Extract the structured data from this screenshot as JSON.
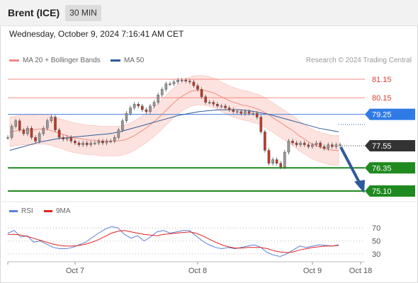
{
  "header": {
    "instrument": "Brent (ICE)",
    "timeframe": "30 MIN"
  },
  "datetime": "Wednesday, October 9, 2024 7:16:41 AM CET",
  "legend": {
    "ma20_label": "MA 20 + Bollinger Bands",
    "ma20_color": "#f28b82",
    "ma50_label": "MA 50",
    "ma50_color": "#2e5a9c"
  },
  "credit": "Research © 2024 Trading Central",
  "rsi_legend": {
    "rsi_label": "RSI",
    "rsi_color": "#5b7fd6",
    "ma_label": "9MA",
    "ma_color": "#e02020"
  },
  "chart_data": [
    {
      "type": "line",
      "title": "Brent (ICE) 30 MIN",
      "x_ticks": [
        "Oct 7",
        "Oct 8",
        "Oct 9",
        "Oct 18"
      ],
      "ylim": [
        74.6,
        81.8
      ],
      "levels": [
        {
          "label": "81.15",
          "value": 81.15,
          "kind": "resistance"
        },
        {
          "label": "80.15",
          "value": 80.15,
          "kind": "resistance"
        },
        {
          "label": "79.25",
          "value": 79.25,
          "kind": "pivot"
        },
        {
          "label": "77.55",
          "value": 77.55,
          "kind": "last"
        },
        {
          "label": "76.35",
          "value": 76.35,
          "kind": "support"
        },
        {
          "label": "75.10",
          "value": 75.1,
          "kind": "support"
        }
      ],
      "series": [
        {
          "name": "Price",
          "values": [
            78.0,
            78.6,
            78.9,
            78.4,
            78.2,
            78.5,
            78.0,
            77.8,
            78.2,
            78.5,
            78.9,
            79.1,
            78.4,
            78.0,
            77.9,
            78.0,
            77.8,
            77.7,
            77.6,
            77.7,
            77.6,
            77.7,
            77.7,
            77.8,
            77.7,
            77.8,
            77.8,
            78.0,
            78.4,
            78.9,
            79.3,
            79.6,
            79.8,
            79.7,
            79.5,
            79.4,
            79.7,
            79.9,
            80.3,
            80.6,
            80.9,
            80.9,
            81.0,
            81.1,
            81.1,
            81.05,
            81.0,
            80.8,
            80.6,
            80.2,
            79.9,
            79.9,
            79.8,
            79.7,
            79.7,
            79.6,
            79.5,
            79.4,
            79.4,
            79.3,
            79.4,
            79.3,
            79.3,
            79.1,
            78.3,
            77.3,
            76.6,
            76.8,
            76.6,
            76.4,
            77.2,
            77.8,
            77.7,
            77.6,
            77.7,
            77.6,
            77.5,
            77.6,
            77.7,
            77.5,
            77.4,
            77.6,
            77.5,
            77.6,
            77.6
          ]
        },
        {
          "name": "MA 20",
          "values": [
            78.3,
            78.35,
            78.4,
            78.4,
            78.4,
            78.45,
            78.45,
            78.4,
            78.3,
            78.2,
            78.1,
            78.0,
            77.95,
            77.9,
            77.85,
            77.85,
            77.8,
            77.8,
            77.8,
            77.8,
            77.85,
            77.95,
            78.1,
            78.3,
            78.5,
            78.75,
            79.0,
            79.3,
            79.6,
            79.9,
            80.15,
            80.35,
            80.5,
            80.55,
            80.55,
            80.5,
            80.4,
            80.25,
            80.1,
            79.95,
            79.85,
            79.75,
            79.7,
            79.6,
            79.5,
            79.35,
            79.15,
            78.95,
            78.75,
            78.55,
            78.35,
            78.1,
            77.9,
            77.7,
            77.55,
            77.45,
            77.35,
            77.3,
            77.3
          ]
        },
        {
          "name": "MA 50",
          "values": [
            77.3,
            77.45,
            77.6,
            77.75,
            77.85,
            77.95,
            78.0,
            78.05,
            78.1,
            78.15,
            78.2,
            78.3,
            78.45,
            78.6,
            78.75,
            78.9,
            79.05,
            79.2,
            79.3,
            79.4,
            79.45,
            79.5,
            79.5,
            79.5,
            79.45,
            79.35,
            79.25,
            79.1,
            78.95,
            78.8,
            78.65,
            78.5,
            78.4,
            78.3
          ]
        }
      ]
    },
    {
      "type": "line",
      "title": "RSI",
      "ylim": [
        20,
        80
      ],
      "y_ticks": [
        "70",
        "50",
        "30"
      ],
      "series": [
        {
          "name": "RSI",
          "values": [
            62,
            66,
            56,
            58,
            48,
            50,
            45,
            40,
            38,
            38,
            40,
            44,
            48,
            55,
            62,
            68,
            72,
            70,
            60,
            54,
            58,
            50,
            56,
            64,
            66,
            62,
            64,
            66,
            66,
            58,
            50,
            44,
            40,
            38,
            40,
            38,
            40,
            42,
            44,
            40,
            32,
            28,
            26,
            30,
            36,
            42,
            40,
            42,
            44,
            43,
            42,
            44
          ]
        },
        {
          "name": "9MA",
          "values": [
            60,
            60,
            59,
            57,
            54,
            51,
            48,
            45,
            43,
            42,
            42,
            43,
            45,
            48,
            52,
            57,
            62,
            65,
            66,
            64,
            62,
            60,
            59,
            58,
            60,
            61,
            62,
            63,
            64,
            62,
            58,
            53,
            48,
            44,
            41,
            39,
            39,
            40,
            40,
            40,
            38,
            35,
            33,
            32,
            33,
            36,
            38,
            40,
            41,
            42,
            42,
            43
          ]
        }
      ]
    }
  ]
}
